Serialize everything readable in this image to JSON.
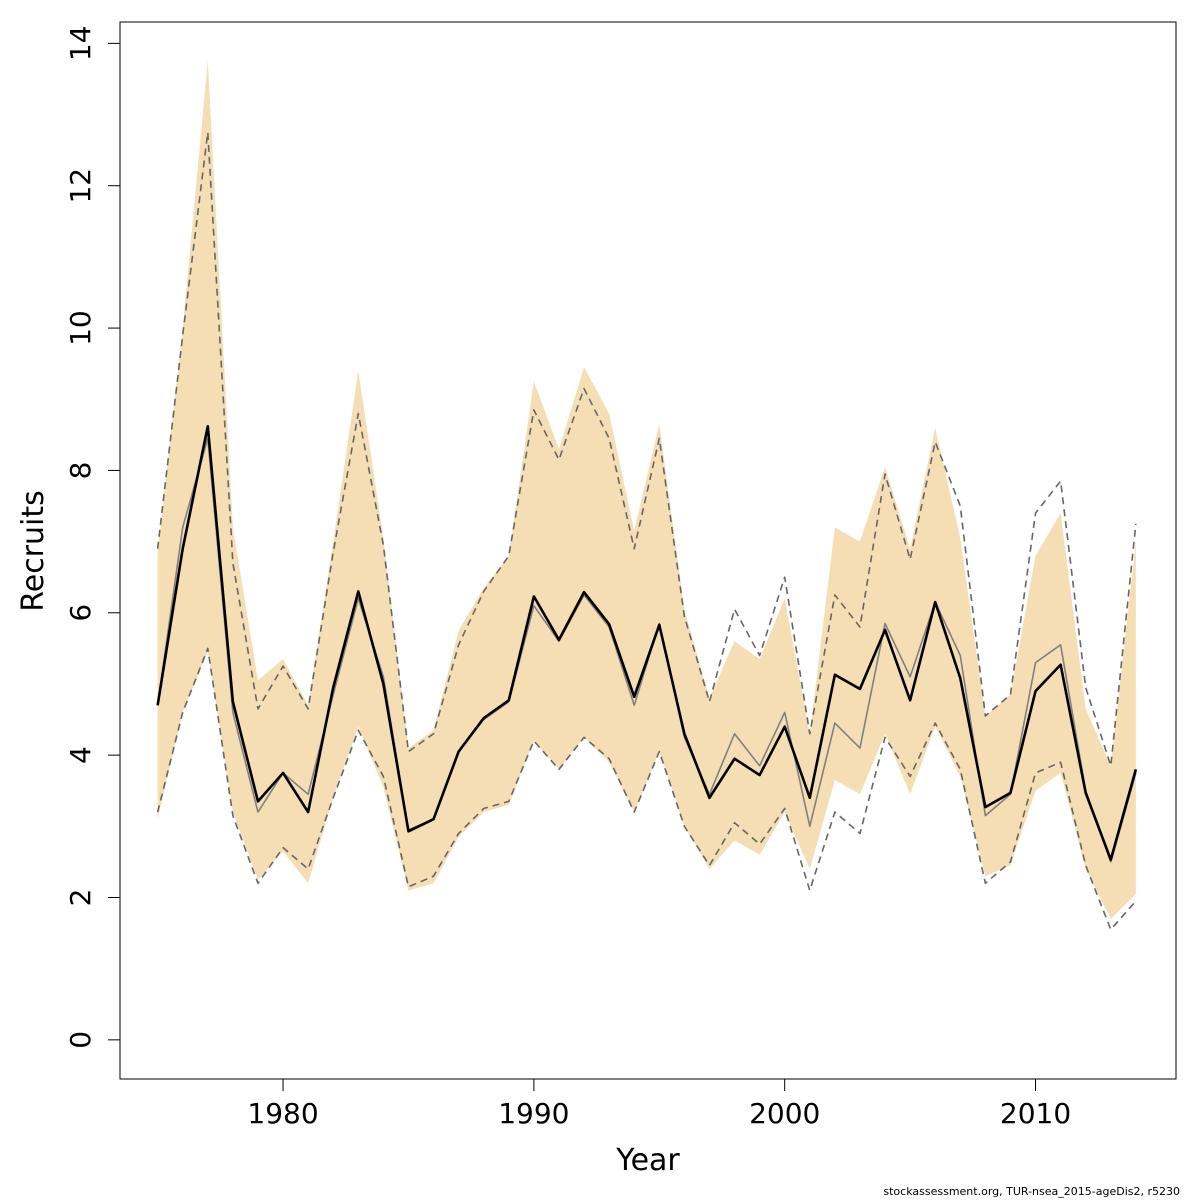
{
  "chart_data": {
    "type": "line",
    "xlabel": "Year",
    "ylabel": "Recruits",
    "xlim": [
      1973.5,
      2015.6
    ],
    "ylim": [
      -0.55,
      14.3
    ],
    "x_ticks": [
      "1980",
      "1990",
      "2000",
      "2010"
    ],
    "y_ticks": [
      "0",
      "2",
      "4",
      "6",
      "8",
      "10",
      "12",
      "14"
    ],
    "grid": false,
    "years": [
      1975,
      1976,
      1977,
      1978,
      1979,
      1980,
      1981,
      1982,
      1983,
      1984,
      1985,
      1986,
      1987,
      1988,
      1989,
      1990,
      1991,
      1992,
      1993,
      1994,
      1995,
      1996,
      1997,
      1998,
      1999,
      2000,
      2001,
      2002,
      2003,
      2004,
      2005,
      2006,
      2007,
      2008,
      2009,
      2010,
      2011,
      2012,
      2013,
      2014
    ],
    "series": [
      {
        "role": "confidence-band",
        "color": "#F5DEB3",
        "lower": [
          3.1,
          4.6,
          5.45,
          3.2,
          2.25,
          2.65,
          2.2,
          3.4,
          4.4,
          3.55,
          2.1,
          2.2,
          2.85,
          3.2,
          3.3,
          4.2,
          3.8,
          4.25,
          3.9,
          3.2,
          4.05,
          3.0,
          2.4,
          2.8,
          2.6,
          3.2,
          2.4,
          3.65,
          3.45,
          4.3,
          3.45,
          4.4,
          3.7,
          2.3,
          2.45,
          3.5,
          3.75,
          2.4,
          1.7,
          2.05
        ],
        "upper": [
          6.85,
          10.0,
          13.75,
          7.2,
          5.05,
          5.35,
          4.7,
          7.0,
          9.4,
          7.05,
          4.1,
          4.35,
          5.75,
          6.35,
          6.8,
          9.25,
          8.3,
          9.45,
          8.8,
          7.15,
          8.65,
          6.05,
          4.8,
          5.6,
          5.35,
          6.2,
          4.3,
          7.2,
          7.0,
          8.05,
          6.9,
          8.6,
          7.05,
          4.55,
          4.85,
          6.8,
          7.4,
          4.65,
          3.85,
          7.0
        ]
      },
      {
        "role": "upper-dashed",
        "color": "#666666",
        "values": [
          6.9,
          9.9,
          12.75,
          6.7,
          4.65,
          5.25,
          4.65,
          6.85,
          8.8,
          6.95,
          4.05,
          4.3,
          5.55,
          6.3,
          6.8,
          8.85,
          8.15,
          9.15,
          8.45,
          6.9,
          8.45,
          5.95,
          4.75,
          6.05,
          5.4,
          6.5,
          4.3,
          6.25,
          5.8,
          7.95,
          6.75,
          8.4,
          7.5,
          4.55,
          4.85,
          7.4,
          7.85,
          4.95,
          3.85,
          7.25
        ]
      },
      {
        "role": "lower-dashed",
        "color": "#666666",
        "values": [
          3.2,
          4.6,
          5.5,
          3.15,
          2.2,
          2.7,
          2.4,
          3.4,
          4.35,
          3.7,
          2.15,
          2.3,
          2.9,
          3.25,
          3.35,
          4.2,
          3.8,
          4.25,
          3.95,
          3.2,
          4.05,
          3.0,
          2.45,
          3.05,
          2.75,
          3.25,
          2.1,
          3.2,
          2.9,
          4.25,
          3.7,
          4.45,
          3.8,
          2.2,
          2.5,
          3.75,
          3.9,
          2.45,
          1.55,
          1.95
        ]
      },
      {
        "role": "grey-line",
        "color": "#808080",
        "values": [
          4.7,
          7.2,
          8.45,
          4.6,
          3.2,
          3.75,
          3.45,
          4.85,
          6.2,
          5.1,
          2.95,
          3.1,
          4.05,
          4.5,
          4.75,
          6.1,
          5.6,
          6.25,
          5.8,
          4.7,
          5.85,
          4.25,
          3.45,
          4.3,
          3.85,
          4.6,
          3.0,
          4.45,
          4.1,
          5.85,
          5.1,
          6.15,
          5.4,
          3.15,
          3.45,
          5.3,
          5.55,
          3.5,
          2.5,
          3.75
        ]
      },
      {
        "role": "main-line",
        "color": "#000000",
        "values": [
          4.7,
          6.9,
          8.62,
          4.75,
          3.35,
          3.75,
          3.2,
          4.95,
          6.3,
          5.0,
          2.93,
          3.1,
          4.05,
          4.52,
          4.77,
          6.23,
          5.62,
          6.29,
          5.84,
          4.82,
          5.83,
          4.3,
          3.4,
          3.95,
          3.72,
          4.4,
          3.4,
          5.13,
          4.93,
          5.76,
          4.77,
          6.15,
          5.08,
          3.27,
          3.47,
          4.9,
          5.27,
          3.47,
          2.53,
          3.8
        ]
      }
    ]
  },
  "footer_text": "stockassessment.org, TUR-nsea_2015-ageDis2, r5230"
}
